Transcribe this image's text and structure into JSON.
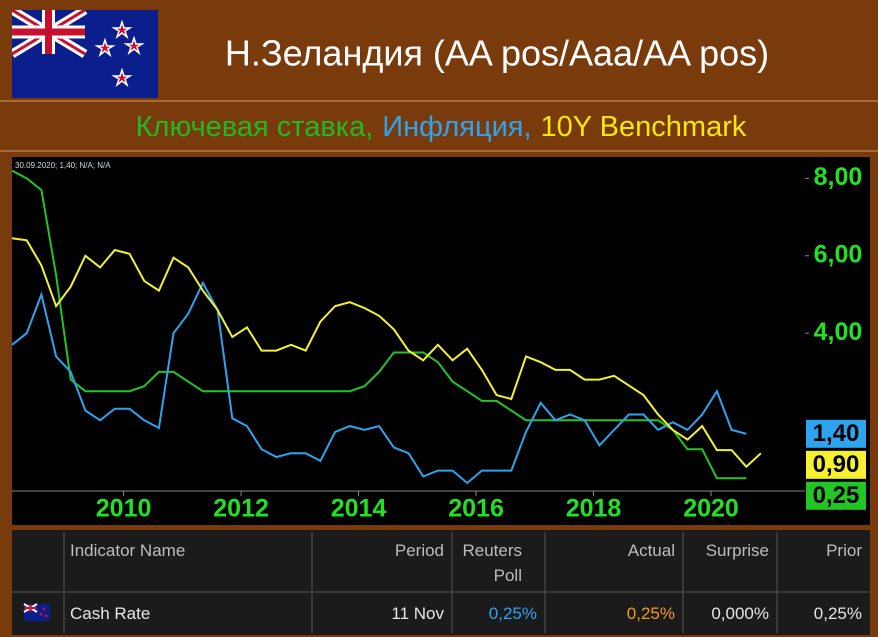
{
  "header": {
    "title": "Н.Зеландия (AA pos/Aaa/AA pos)",
    "subtitle_parts": [
      {
        "text": "Ключевая ставка,",
        "color": "#22b822"
      },
      {
        "text": "Инфляция,",
        "color": "#2ea3ee"
      },
      {
        "text": "10Y Benchmark",
        "color": "#f5e60e"
      }
    ]
  },
  "chart_data": {
    "type": "line",
    "annotation": "30.09.2020; 1,40; N/A; N/A",
    "x": [
      2008.1,
      2008.35,
      2008.6,
      2008.85,
      2009.1,
      2009.35,
      2009.6,
      2009.85,
      2010.1,
      2010.35,
      2010.6,
      2010.85,
      2011.1,
      2011.35,
      2011.6,
      2011.85,
      2012.1,
      2012.35,
      2012.6,
      2012.85,
      2013.1,
      2013.35,
      2013.6,
      2013.85,
      2014.1,
      2014.35,
      2014.6,
      2014.85,
      2015.1,
      2015.35,
      2015.6,
      2015.85,
      2016.1,
      2016.35,
      2016.6,
      2016.85,
      2017.1,
      2017.35,
      2017.6,
      2017.85,
      2018.1,
      2018.35,
      2018.6,
      2018.85,
      2019.1,
      2019.35,
      2019.6,
      2019.85,
      2020.1,
      2020.35,
      2020.6,
      2020.85
    ],
    "series": [
      {
        "name": "Ключевая ставка",
        "color": "#22c522",
        "end_label": "0,25",
        "values": [
          8.2,
          8.0,
          7.7,
          5.5,
          2.8,
          2.5,
          2.5,
          2.5,
          2.5,
          2.63,
          3.0,
          3.0,
          2.75,
          2.5,
          2.5,
          2.5,
          2.5,
          2.5,
          2.5,
          2.5,
          2.5,
          2.5,
          2.5,
          2.5,
          2.63,
          3.0,
          3.5,
          3.5,
          3.5,
          3.25,
          2.75,
          2.5,
          2.25,
          2.25,
          2.0,
          1.75,
          1.75,
          1.75,
          1.75,
          1.75,
          1.75,
          1.75,
          1.75,
          1.75,
          1.75,
          1.5,
          1.0,
          1.0,
          0.25,
          0.25,
          0.25,
          null
        ]
      },
      {
        "name": "Инфляция",
        "color": "#2ea3ee",
        "end_label": "1,40",
        "values": [
          3.7,
          4.0,
          5.0,
          3.4,
          3.0,
          2.0,
          1.75,
          2.05,
          2.05,
          1.75,
          1.55,
          4.0,
          4.5,
          5.3,
          4.6,
          1.8,
          1.6,
          1.0,
          0.8,
          0.9,
          0.9,
          0.7,
          1.45,
          1.6,
          1.5,
          1.6,
          1.05,
          0.9,
          0.3,
          0.45,
          0.45,
          0.13,
          0.45,
          0.45,
          0.45,
          1.45,
          2.2,
          1.75,
          1.9,
          1.75,
          1.1,
          1.5,
          1.9,
          1.9,
          1.5,
          1.7,
          1.5,
          1.9,
          2.5,
          1.5,
          1.4,
          null
        ]
      },
      {
        "name": "10Y Benchmark",
        "color": "#f5f032",
        "end_label": "0,90",
        "values": [
          6.45,
          6.4,
          5.75,
          4.7,
          5.2,
          6.0,
          5.7,
          6.15,
          6.05,
          5.35,
          5.1,
          5.95,
          5.7,
          5.1,
          4.6,
          3.9,
          4.15,
          3.55,
          3.55,
          3.7,
          3.55,
          4.3,
          4.7,
          4.8,
          4.65,
          4.45,
          4.1,
          3.55,
          3.3,
          3.7,
          3.3,
          3.6,
          3.05,
          2.4,
          2.3,
          3.4,
          3.25,
          3.05,
          3.05,
          2.8,
          2.8,
          2.9,
          2.65,
          2.4,
          1.9,
          1.5,
          1.25,
          1.6,
          0.98,
          0.98,
          0.55,
          0.9
        ]
      }
    ],
    "xlim": [
      2008.1,
      2021.6
    ],
    "xticks": [
      2010,
      2012,
      2014,
      2016,
      2018,
      2020
    ],
    "ylim": [
      0,
      8.5
    ],
    "yticks": [
      {
        "value": 4,
        "label": "4,00"
      },
      {
        "value": 6,
        "label": "6,00"
      },
      {
        "value": 8,
        "label": "8,00"
      }
    ]
  },
  "table": {
    "columns": [
      "Indicator Name",
      "Period",
      "Reuters Poll",
      "Actual",
      "Surprise",
      "Prior"
    ],
    "rows": [
      [
        "Cash Rate",
        "11 Nov",
        "0,25%",
        "0,25%",
        "0,000%",
        "0,25%"
      ]
    ]
  }
}
